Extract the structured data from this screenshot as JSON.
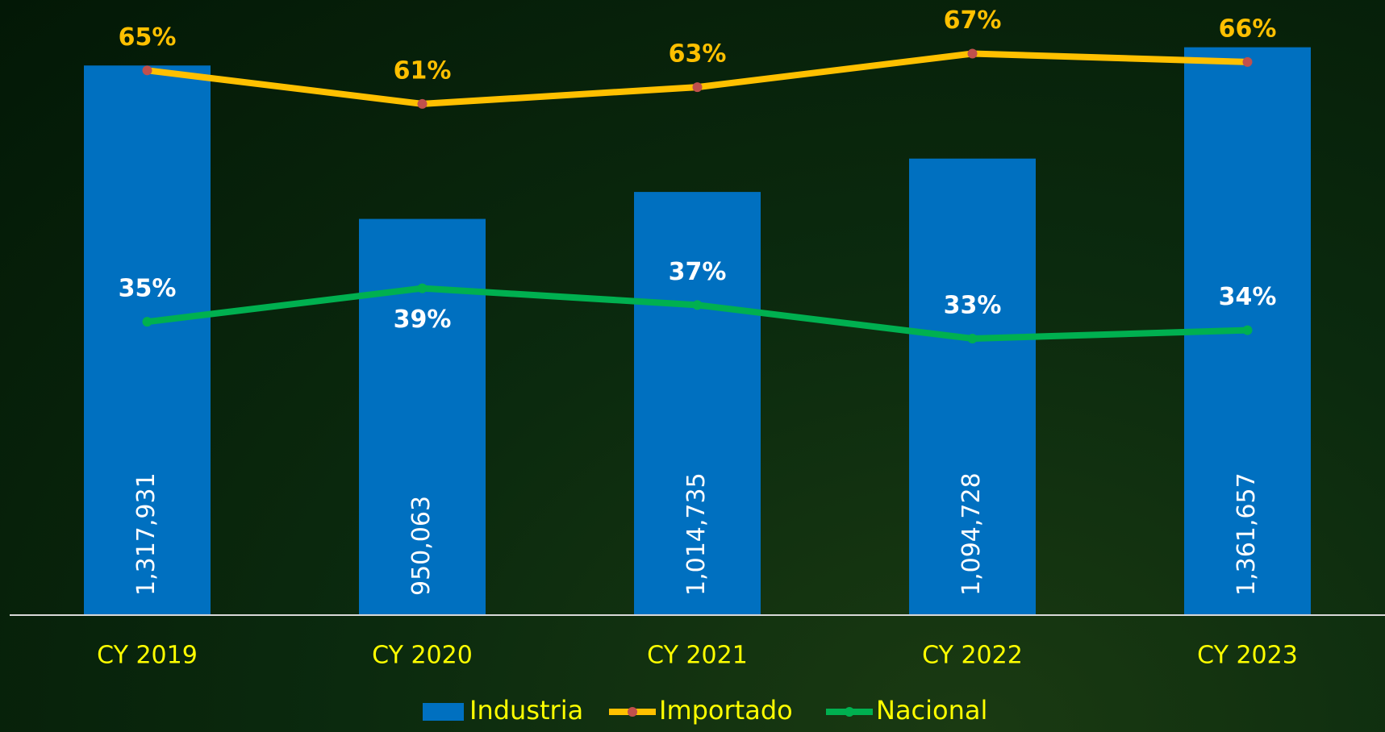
{
  "chart_data": {
    "type": "bar",
    "categories": [
      "CY 2019",
      "CY 2020",
      "CY 2021",
      "CY 2022",
      "CY 2023"
    ],
    "ylim": [
      0,
      1475000
    ],
    "y2lim": [
      0,
      73.4
    ],
    "series": [
      {
        "name": "Industria",
        "color": "#0070c0",
        "values": [
          1317931,
          950063,
          1014735,
          1094728,
          1361657
        ],
        "value_labels": [
          "1,317,931",
          "950,063",
          "1,014,735",
          "1,094,728",
          "1,361,657"
        ]
      },
      {
        "name": "Importado",
        "type": "line",
        "axis": "y2",
        "color": "#ffc000",
        "marker_color": "#c0504d",
        "values": [
          65,
          61,
          63,
          67,
          66
        ],
        "value_labels": [
          "65%",
          "61%",
          "63%",
          "67%",
          "66%"
        ]
      },
      {
        "name": "Nacional",
        "type": "line",
        "axis": "y2",
        "color": "#00b050",
        "values": [
          35,
          39,
          37,
          33,
          34
        ],
        "value_labels": [
          "35%",
          "39%",
          "37%",
          "33%",
          "34%"
        ]
      }
    ],
    "legend": "bottom"
  }
}
